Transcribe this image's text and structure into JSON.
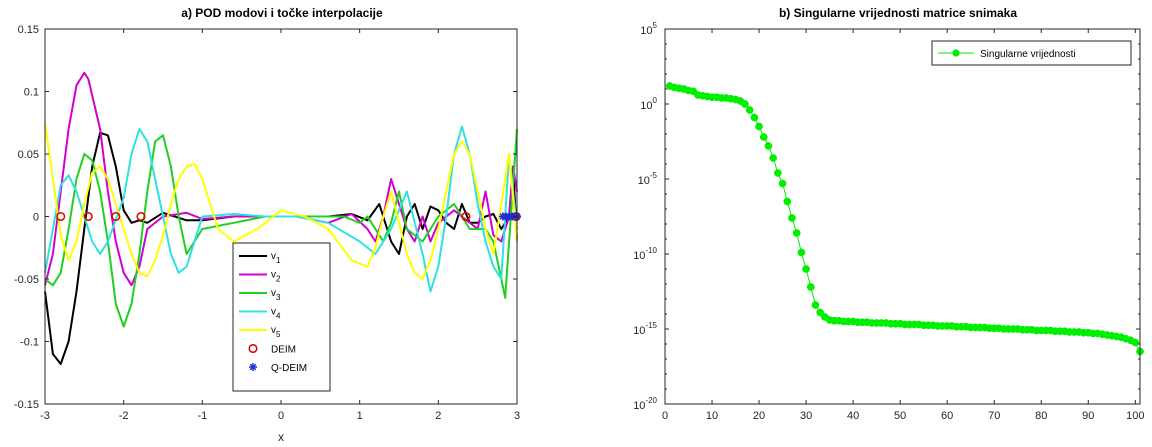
{
  "chart_data": [
    {
      "type": "line",
      "title": "a) POD modovi i točke interpolacije",
      "xlabel": "x",
      "ylabel": "",
      "xlim": [
        -3,
        3
      ],
      "ylim": [
        -0.15,
        0.15
      ],
      "xticks": [
        -3,
        -2,
        -1,
        0,
        1,
        2,
        3
      ],
      "yticks": [
        -0.15,
        -0.1,
        -0.05,
        0,
        0.05,
        0.1,
        0.15
      ],
      "xtick_labels": [
        "-3",
        "-2",
        "-1",
        "0",
        "1",
        "2",
        "3"
      ],
      "ytick_labels": [
        "-0.15",
        "-0.1",
        "-0.05",
        "0",
        "0.05",
        "0.1",
        "0.15"
      ],
      "grid": false,
      "legend_position": "bottom-center",
      "series": [
        {
          "name": "v",
          "subscript": "1",
          "color": "#000000",
          "x": [
            -3,
            -2.9,
            -2.8,
            -2.7,
            -2.6,
            -2.5,
            -2.4,
            -2.3,
            -2.2,
            -2.1,
            -2.0,
            -1.9,
            -1.8,
            -1.7,
            -1.5,
            -1.2,
            -1.0,
            -0.6,
            -0.2,
            0.2,
            0.6,
            0.9,
            1.1,
            1.25,
            1.4,
            1.5,
            1.6,
            1.7,
            1.8,
            1.9,
            2.0,
            2.1,
            2.2,
            2.3,
            2.4,
            2.5,
            2.6,
            2.7,
            2.8,
            2.9,
            2.95,
            3.0
          ],
          "values": [
            -0.06,
            -0.11,
            -0.118,
            -0.1,
            -0.06,
            -0.01,
            0.04,
            0.067,
            0.065,
            0.04,
            0.005,
            -0.005,
            -0.003,
            -0.005,
            0.003,
            -0.003,
            -0.003,
            0.0,
            0.0,
            0.0,
            0.0,
            0.002,
            -0.003,
            0.01,
            -0.02,
            -0.03,
            0.0,
            0.01,
            -0.01,
            0.008,
            0.005,
            -0.005,
            -0.01,
            0.01,
            -0.005,
            -0.005,
            0.0,
            0.002,
            -0.01,
            0.0,
            0.04,
            -0.02
          ]
        },
        {
          "name": "v",
          "subscript": "2",
          "color": "#d000d0",
          "x": [
            -3,
            -2.9,
            -2.8,
            -2.7,
            -2.6,
            -2.5,
            -2.45,
            -2.3,
            -2.2,
            -2.1,
            -2.0,
            -1.9,
            -1.8,
            -1.7,
            -1.5,
            -1.2,
            -1.0,
            -0.6,
            -0.2,
            0.2,
            0.6,
            0.9,
            1.1,
            1.2,
            1.3,
            1.4,
            1.5,
            1.6,
            1.7,
            1.8,
            1.9,
            2.0,
            2.2,
            2.4,
            2.5,
            2.6,
            2.7,
            2.8,
            2.9,
            2.95,
            3.0
          ],
          "values": [
            -0.055,
            -0.03,
            0.02,
            0.07,
            0.105,
            0.115,
            0.11,
            0.07,
            0.02,
            -0.02,
            -0.045,
            -0.055,
            -0.04,
            -0.01,
            0.0,
            0.003,
            -0.002,
            0.0,
            0.0,
            0.0,
            -0.005,
            0.002,
            -0.01,
            -0.02,
            0.0,
            0.03,
            0.01,
            -0.01,
            -0.02,
            0.0,
            -0.02,
            -0.005,
            0.005,
            -0.005,
            -0.01,
            0.02,
            -0.015,
            -0.02,
            0.0,
            0.04,
            0.02
          ]
        },
        {
          "name": "v",
          "subscript": "3",
          "color": "#20d020",
          "x": [
            -3,
            -2.9,
            -2.8,
            -2.7,
            -2.6,
            -2.5,
            -2.4,
            -2.3,
            -2.2,
            -2.1,
            -2.0,
            -1.9,
            -1.8,
            -1.7,
            -1.6,
            -1.5,
            -1.4,
            -1.3,
            -1.2,
            -1.0,
            -0.6,
            -0.2,
            0.2,
            0.6,
            0.8,
            1.0,
            1.1,
            1.2,
            1.3,
            1.4,
            1.5,
            1.6,
            1.8,
            1.9,
            2.0,
            2.2,
            2.4,
            2.6,
            2.7,
            2.8,
            2.85,
            2.9,
            3.0
          ],
          "values": [
            -0.05,
            -0.055,
            -0.045,
            -0.01,
            0.03,
            0.05,
            0.045,
            0.02,
            -0.02,
            -0.07,
            -0.088,
            -0.07,
            -0.03,
            0.02,
            0.06,
            0.065,
            0.04,
            0.0,
            -0.03,
            -0.01,
            -0.005,
            0.0,
            0.0,
            0.0,
            0.0,
            -0.005,
            0.0,
            -0.01,
            -0.02,
            -0.005,
            0.02,
            -0.01,
            -0.02,
            -0.01,
            0.0,
            0.01,
            -0.01,
            -0.01,
            -0.02,
            -0.05,
            -0.065,
            -0.02,
            0.07
          ]
        },
        {
          "name": "v",
          "subscript": "4",
          "color": "#30e0e0",
          "x": [
            -3,
            -2.9,
            -2.8,
            -2.7,
            -2.6,
            -2.5,
            -2.4,
            -2.3,
            -2.2,
            -2.0,
            -1.9,
            -1.8,
            -1.7,
            -1.6,
            -1.5,
            -1.4,
            -1.3,
            -1.2,
            -1.1,
            -1.0,
            -0.6,
            -0.2,
            0.2,
            0.6,
            1.0,
            1.2,
            1.4,
            1.6,
            1.8,
            1.9,
            2.0,
            2.1,
            2.2,
            2.3,
            2.4,
            2.5,
            2.6,
            2.7,
            2.8,
            2.9,
            3.0
          ],
          "values": [
            -0.045,
            -0.01,
            0.025,
            0.033,
            0.02,
            0.0,
            -0.02,
            -0.03,
            -0.02,
            0.015,
            0.05,
            0.07,
            0.06,
            0.03,
            0.0,
            -0.03,
            -0.045,
            -0.04,
            -0.02,
            0.0,
            0.002,
            0.0,
            0.0,
            -0.005,
            -0.02,
            -0.03,
            -0.01,
            0.02,
            -0.03,
            -0.06,
            -0.04,
            0.0,
            0.05,
            0.072,
            0.05,
            0.01,
            -0.02,
            -0.04,
            -0.05,
            0.05,
            -0.01
          ]
        },
        {
          "name": "v",
          "subscript": "5",
          "color": "#ffff00",
          "x": [
            -3,
            -2.9,
            -2.8,
            -2.7,
            -2.6,
            -2.5,
            -2.4,
            -2.3,
            -2.2,
            -2.1,
            -2.0,
            -1.9,
            -1.8,
            -1.7,
            -1.6,
            -1.5,
            -1.4,
            -1.3,
            -1.2,
            -1.1,
            -1.0,
            -0.9,
            -0.8,
            -0.6,
            -0.3,
            0.0,
            0.3,
            0.6,
            0.9,
            1.1,
            1.2,
            1.3,
            1.4,
            1.5,
            1.6,
            1.7,
            1.8,
            1.9,
            2.0,
            2.1,
            2.2,
            2.3,
            2.4,
            2.5,
            2.6,
            2.7,
            2.8,
            2.9,
            3.0
          ],
          "values": [
            0.075,
            0.03,
            -0.015,
            -0.035,
            -0.02,
            0.01,
            0.035,
            0.04,
            0.03,
            0.01,
            -0.01,
            -0.03,
            -0.045,
            -0.048,
            -0.035,
            -0.015,
            0.01,
            0.03,
            0.04,
            0.042,
            0.03,
            0.01,
            -0.01,
            -0.02,
            -0.01,
            0.005,
            0.0,
            -0.01,
            -0.035,
            -0.04,
            -0.025,
            0.0,
            0.02,
            -0.005,
            -0.03,
            -0.045,
            -0.05,
            -0.035,
            -0.01,
            0.02,
            0.05,
            0.06,
            0.05,
            0.02,
            -0.01,
            -0.03,
            0.01,
            0.05,
            -0.02
          ]
        }
      ],
      "markers": [
        {
          "name": "DEIM",
          "symbol": "circle",
          "color": "#dd0000",
          "x": [
            -2.8,
            -2.45,
            -2.1,
            -1.78,
            2.35,
            2.99
          ],
          "y": [
            0,
            0,
            0,
            0,
            0,
            0
          ]
        },
        {
          "name": "Q-DEIM",
          "symbol": "asterisk",
          "color": "#1e2fd6",
          "x": [
            2.82,
            2.86,
            2.9,
            2.94,
            2.97,
            3.0
          ],
          "y": [
            0,
            0,
            0,
            0,
            0,
            0
          ]
        }
      ]
    },
    {
      "type": "line",
      "title": "b) Singularne vrijednosti matrice snimaka",
      "xlabel": "",
      "ylabel": "",
      "yscale": "log",
      "xlim": [
        0,
        101
      ],
      "ylim": [
        1e-20,
        100000.0
      ],
      "xticks": [
        0,
        10,
        20,
        30,
        40,
        50,
        60,
        70,
        80,
        90,
        100
      ],
      "xtick_labels": [
        "0",
        "10",
        "20",
        "30",
        "40",
        "50",
        "60",
        "70",
        "80",
        "90",
        "100"
      ],
      "ytick_exponents": [
        -20,
        -15,
        -10,
        -5,
        0,
        5
      ],
      "ytick_base": "10",
      "grid": false,
      "legend_position": "top-right",
      "series": [
        {
          "name": "Singularne vrijednosti",
          "color": "#00ee00",
          "marker": "filled-circle",
          "x": [
            1,
            2,
            3,
            4,
            5,
            6,
            7,
            8,
            9,
            10,
            11,
            12,
            13,
            14,
            15,
            16,
            17,
            18,
            19,
            20,
            21,
            22,
            23,
            24,
            25,
            26,
            27,
            28,
            29,
            30,
            31,
            32,
            33,
            34,
            35,
            36,
            37,
            38,
            39,
            40,
            41,
            42,
            43,
            44,
            45,
            46,
            47,
            48,
            49,
            50,
            51,
            52,
            53,
            54,
            55,
            56,
            57,
            58,
            59,
            60,
            61,
            62,
            63,
            64,
            65,
            66,
            67,
            68,
            69,
            70,
            71,
            72,
            73,
            74,
            75,
            76,
            77,
            78,
            79,
            80,
            81,
            82,
            83,
            84,
            85,
            86,
            87,
            88,
            89,
            90,
            91,
            92,
            93,
            94,
            95,
            96,
            97,
            98,
            99,
            100,
            101
          ],
          "log10_values": [
            1.2,
            1.1,
            1.05,
            1.0,
            0.9,
            0.85,
            0.6,
            0.55,
            0.5,
            0.45,
            0.45,
            0.4,
            0.4,
            0.35,
            0.3,
            0.2,
            0.0,
            -0.4,
            -0.9,
            -1.5,
            -2.2,
            -2.8,
            -3.6,
            -4.6,
            -5.3,
            -6.5,
            -7.6,
            -8.6,
            -9.9,
            -11.0,
            -12.2,
            -13.4,
            -13.9,
            -14.2,
            -14.4,
            -14.45,
            -14.45,
            -14.5,
            -14.5,
            -14.5,
            -14.55,
            -14.55,
            -14.55,
            -14.6,
            -14.6,
            -14.6,
            -14.6,
            -14.65,
            -14.65,
            -14.65,
            -14.7,
            -14.7,
            -14.7,
            -14.7,
            -14.75,
            -14.75,
            -14.75,
            -14.8,
            -14.8,
            -14.8,
            -14.8,
            -14.85,
            -14.85,
            -14.85,
            -14.9,
            -14.9,
            -14.9,
            -14.9,
            -14.95,
            -14.95,
            -14.95,
            -15.0,
            -15.0,
            -15.0,
            -15.0,
            -15.05,
            -15.05,
            -15.05,
            -15.1,
            -15.1,
            -15.1,
            -15.1,
            -15.15,
            -15.15,
            -15.15,
            -15.2,
            -15.2,
            -15.2,
            -15.25,
            -15.25,
            -15.3,
            -15.3,
            -15.35,
            -15.4,
            -15.45,
            -15.5,
            -15.55,
            -15.65,
            -15.75,
            -15.9,
            -16.5
          ]
        }
      ]
    }
  ]
}
